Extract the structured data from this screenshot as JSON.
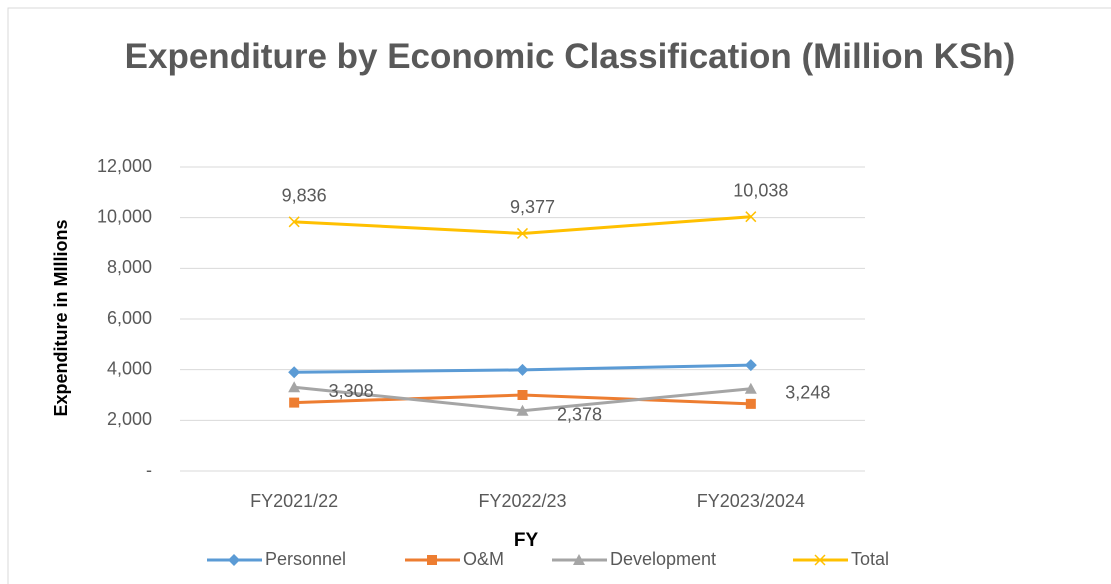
{
  "chart_data": {
    "type": "line",
    "title": "Expenditure by Economic Classification (Million KSh)",
    "x_label": "FY",
    "y_label": "Expenditure in MIllions",
    "categories": [
      "FY2021/22",
      "FY2022/23",
      "FY2023/2024"
    ],
    "series": [
      {
        "name": "Personnel",
        "color": "#5b9bd5",
        "marker": "diamond",
        "values": [
          3900,
          3990,
          4180
        ]
      },
      {
        "name": "O&M",
        "color": "#ed7d31",
        "marker": "square",
        "values": [
          2700,
          3000,
          2650
        ]
      },
      {
        "name": "Development",
        "color": "#a5a5a5",
        "marker": "triangle",
        "values": [
          3308,
          2378,
          3248
        ],
        "value_labels": [
          "3,308",
          "2,378",
          "3,248"
        ]
      },
      {
        "name": "Total",
        "color": "#ffc000",
        "marker": "x",
        "values": [
          9836,
          9377,
          10038
        ],
        "value_labels": [
          "9,836",
          "9,377",
          "10,038"
        ]
      }
    ],
    "ylim": [
      0,
      12000
    ],
    "yticks": [
      {
        "value": 0,
        "label": "-"
      },
      {
        "value": 2000,
        "label": "2,000"
      },
      {
        "value": 4000,
        "label": "4,000"
      },
      {
        "value": 6000,
        "label": "6,000"
      },
      {
        "value": 8000,
        "label": "8,000"
      },
      {
        "value": 10000,
        "label": "10,000"
      },
      {
        "value": 12000,
        "label": "12,000"
      }
    ],
    "grid": true,
    "legend": "bottom"
  }
}
